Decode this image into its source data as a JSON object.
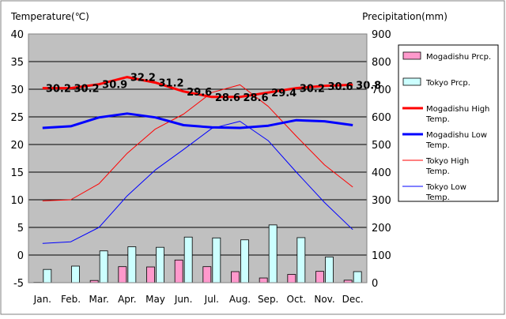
{
  "chart_data": {
    "type": "bar+line",
    "categories": [
      "Jan.",
      "Feb.",
      "Mar.",
      "Apr.",
      "May",
      "Jun.",
      "Jul.",
      "Aug.",
      "Sep.",
      "Oct.",
      "Nov.",
      "Dec."
    ],
    "y_left": {
      "label": "Temperature(℃)",
      "range": [
        -5,
        40
      ],
      "step": 5
    },
    "y_right": {
      "label": "Precipitation(mm)",
      "range": [
        0,
        900
      ],
      "step": 100
    },
    "grid": true,
    "legend_position": "right",
    "series": [
      {
        "name": "Mogadishu Prcp.",
        "type": "bar",
        "axis": "right",
        "color": "#ff99cc",
        "values": [
          1,
          0,
          8,
          58,
          57,
          82,
          58,
          40,
          17,
          30,
          41,
          9
        ]
      },
      {
        "name": "Tokyo Prcp.",
        "type": "bar",
        "axis": "right",
        "color": "#ccffff",
        "values": [
          48,
          60,
          115,
          130,
          128,
          165,
          162,
          155,
          209,
          163,
          93,
          40
        ]
      },
      {
        "name": "Mogadishu High Temp.",
        "type": "line",
        "axis": "left",
        "color": "#ff0000",
        "width": 3,
        "values": [
          30.2,
          30.2,
          30.9,
          32.2,
          31.2,
          29.6,
          28.6,
          28.6,
          29.4,
          30.2,
          30.6,
          30.8
        ],
        "labels": [
          "30.2",
          "30.2",
          "30.9",
          "32.2",
          "31.2",
          "29.6",
          "28.6",
          "28.6",
          "29.4",
          "30.2",
          "30.6",
          "30.8"
        ]
      },
      {
        "name": "Mogadishu Low Temp.",
        "type": "line",
        "axis": "left",
        "color": "#0000ff",
        "width": 3,
        "values": [
          23.0,
          23.3,
          24.9,
          25.6,
          24.9,
          23.5,
          23.1,
          23.0,
          23.4,
          24.4,
          24.2,
          23.5
        ]
      },
      {
        "name": "Tokyo High Temp.",
        "type": "line",
        "axis": "left",
        "color": "#ff0000",
        "width": 1,
        "values": [
          9.8,
          10.0,
          12.9,
          18.4,
          22.8,
          25.5,
          29.4,
          30.8,
          26.9,
          21.5,
          16.3,
          12.3
        ]
      },
      {
        "name": "Tokyo Low Temp.",
        "type": "line",
        "axis": "left",
        "color": "#0000ff",
        "width": 1,
        "values": [
          2.1,
          2.4,
          5.0,
          10.7,
          15.4,
          19.1,
          22.9,
          24.2,
          20.7,
          15.0,
          9.5,
          4.6
        ]
      }
    ],
    "legend": [
      {
        "label": "Mogadishu Prcp.",
        "lines": [
          "Mogadishu Prcp."
        ],
        "kind": "bar",
        "fill": "#ff99cc",
        "width": 1
      },
      {
        "label": "Tokyo Prcp.",
        "lines": [
          "Tokyo Prcp."
        ],
        "kind": "bar",
        "fill": "#ccffff",
        "width": 1
      },
      {
        "label": "Mogadishu High Temp.",
        "lines": [
          "Mogadishu High",
          "Temp."
        ],
        "kind": "line",
        "stroke": "#ff0000",
        "width": 3
      },
      {
        "label": "Mogadishu Low Temp.",
        "lines": [
          "Mogadishu Low",
          "Temp."
        ],
        "kind": "line",
        "stroke": "#0000ff",
        "width": 3
      },
      {
        "label": "Tokyo High Temp.",
        "lines": [
          "Tokyo High",
          "Temp."
        ],
        "kind": "line",
        "stroke": "#ff0000",
        "width": 1
      },
      {
        "label": "Tokyo Low Temp.",
        "lines": [
          "Tokyo Low",
          "Temp."
        ],
        "kind": "line",
        "stroke": "#0000ff",
        "width": 1
      }
    ]
  }
}
